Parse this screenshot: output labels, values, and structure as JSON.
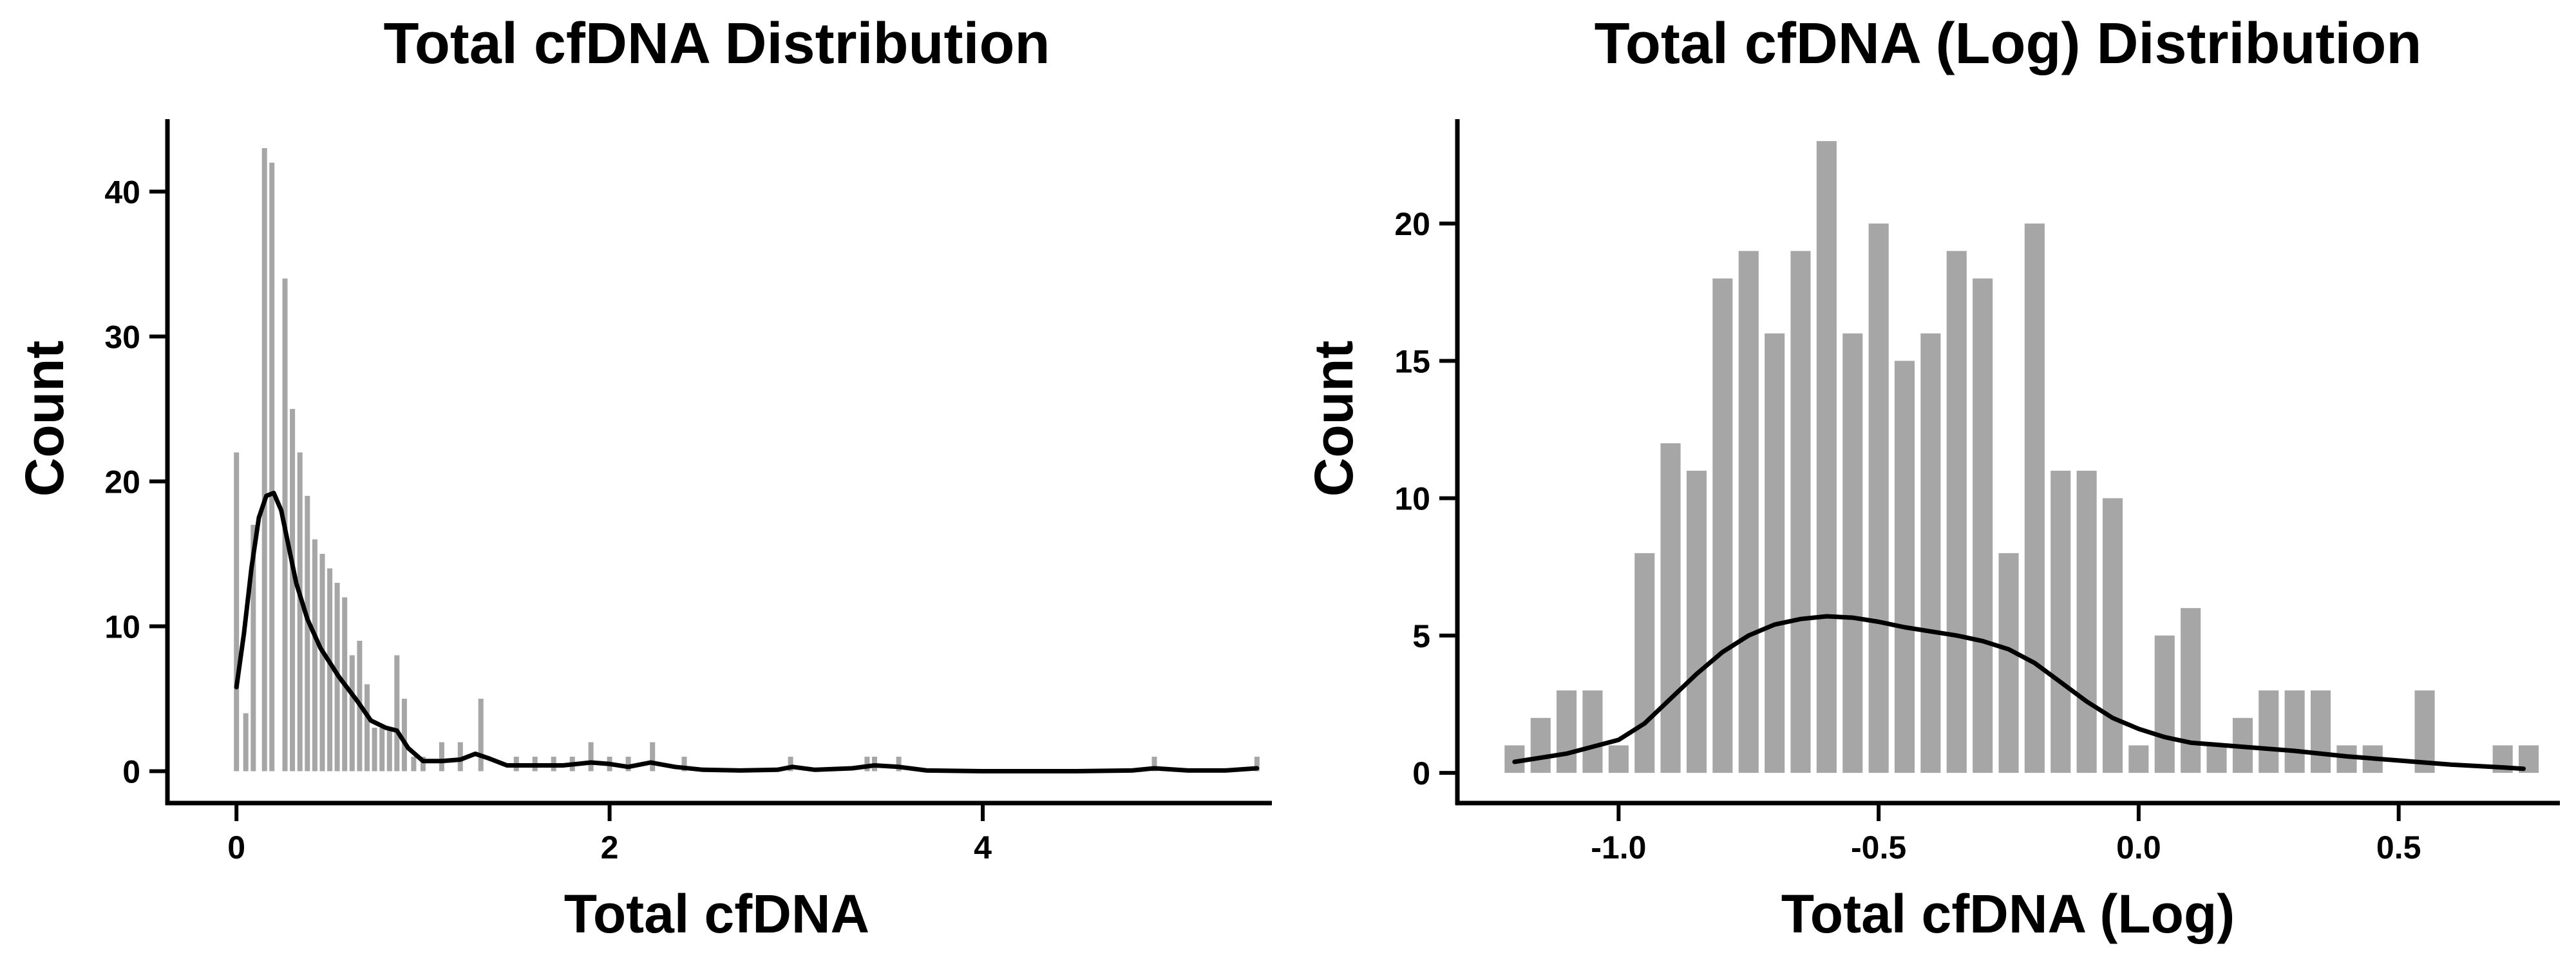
{
  "chart_data": [
    {
      "type": "bar",
      "title": "Total cfDNA Distribution",
      "xlabel": "Total cfDNA",
      "ylabel": "Count",
      "xlim": [
        -0.37,
        5.55
      ],
      "ylim": [
        -2.2,
        45
      ],
      "xticks": [
        "0",
        "2",
        "4"
      ],
      "yticks": [
        "0",
        "10",
        "20",
        "30",
        "40"
      ],
      "grid": false,
      "bin_width": 0.0275,
      "series": [
        {
          "kind": "histogram",
          "bins": [
            {
              "x": 0.0,
              "count": 22
            },
            {
              "x": 0.05,
              "count": 4
            },
            {
              "x": 0.09,
              "count": 17
            },
            {
              "x": 0.15,
              "count": 43
            },
            {
              "x": 0.19,
              "count": 42
            },
            {
              "x": 0.26,
              "count": 34
            },
            {
              "x": 0.3,
              "count": 25
            },
            {
              "x": 0.34,
              "count": 22
            },
            {
              "x": 0.38,
              "count": 19
            },
            {
              "x": 0.42,
              "count": 16
            },
            {
              "x": 0.46,
              "count": 15
            },
            {
              "x": 0.5,
              "count": 14
            },
            {
              "x": 0.54,
              "count": 13
            },
            {
              "x": 0.58,
              "count": 12
            },
            {
              "x": 0.62,
              "count": 8
            },
            {
              "x": 0.66,
              "count": 9
            },
            {
              "x": 0.7,
              "count": 6
            },
            {
              "x": 0.74,
              "count": 3
            },
            {
              "x": 0.78,
              "count": 3
            },
            {
              "x": 0.82,
              "count": 3
            },
            {
              "x": 0.86,
              "count": 8
            },
            {
              "x": 0.9,
              "count": 5
            },
            {
              "x": 0.95,
              "count": 1
            },
            {
              "x": 1.0,
              "count": 1
            },
            {
              "x": 1.1,
              "count": 2
            },
            {
              "x": 1.2,
              "count": 2
            },
            {
              "x": 1.31,
              "count": 5
            },
            {
              "x": 1.5,
              "count": 1
            },
            {
              "x": 1.6,
              "count": 1
            },
            {
              "x": 1.7,
              "count": 1
            },
            {
              "x": 1.8,
              "count": 1
            },
            {
              "x": 1.9,
              "count": 2
            },
            {
              "x": 2.0,
              "count": 1
            },
            {
              "x": 2.1,
              "count": 1
            },
            {
              "x": 2.23,
              "count": 2
            },
            {
              "x": 2.4,
              "count": 1
            },
            {
              "x": 2.97,
              "count": 1
            },
            {
              "x": 3.38,
              "count": 1
            },
            {
              "x": 3.42,
              "count": 1
            },
            {
              "x": 3.55,
              "count": 1
            },
            {
              "x": 4.92,
              "count": 1
            },
            {
              "x": 5.47,
              "count": 1
            }
          ]
        },
        {
          "kind": "kde",
          "points": [
            [
              0.0,
              5.8
            ],
            [
              0.04,
              9.5
            ],
            [
              0.08,
              14.0
            ],
            [
              0.12,
              17.5
            ],
            [
              0.16,
              19.0
            ],
            [
              0.2,
              19.2
            ],
            [
              0.24,
              18.0
            ],
            [
              0.28,
              15.5
            ],
            [
              0.32,
              13.0
            ],
            [
              0.38,
              10.5
            ],
            [
              0.45,
              8.5
            ],
            [
              0.55,
              6.5
            ],
            [
              0.65,
              4.8
            ],
            [
              0.72,
              3.5
            ],
            [
              0.8,
              3.0
            ],
            [
              0.86,
              2.8
            ],
            [
              0.92,
              1.6
            ],
            [
              1.0,
              0.7
            ],
            [
              1.1,
              0.7
            ],
            [
              1.2,
              0.8
            ],
            [
              1.28,
              1.2
            ],
            [
              1.35,
              0.9
            ],
            [
              1.45,
              0.4
            ],
            [
              1.6,
              0.4
            ],
            [
              1.75,
              0.4
            ],
            [
              1.9,
              0.6
            ],
            [
              2.0,
              0.5
            ],
            [
              2.1,
              0.3
            ],
            [
              2.22,
              0.6
            ],
            [
              2.35,
              0.3
            ],
            [
              2.5,
              0.1
            ],
            [
              2.7,
              0.05
            ],
            [
              2.9,
              0.1
            ],
            [
              2.98,
              0.3
            ],
            [
              3.1,
              0.1
            ],
            [
              3.3,
              0.2
            ],
            [
              3.42,
              0.4
            ],
            [
              3.55,
              0.3
            ],
            [
              3.7,
              0.05
            ],
            [
              4.0,
              0.0
            ],
            [
              4.5,
              0.0
            ],
            [
              4.8,
              0.05
            ],
            [
              4.92,
              0.2
            ],
            [
              5.1,
              0.05
            ],
            [
              5.3,
              0.05
            ],
            [
              5.47,
              0.2
            ]
          ]
        }
      ]
    },
    {
      "type": "bar",
      "title": "Total cfDNA (Log) Distribution",
      "xlabel": "Total cfDNA (Log)",
      "ylabel": "Count",
      "xlim": [
        -1.31,
        0.81
      ],
      "ylim": [
        -1.1,
        23.8
      ],
      "xticks": [
        "-1.0",
        "-0.5",
        "0.0",
        "0.5"
      ],
      "yticks": [
        "0",
        "5",
        "10",
        "15",
        "20"
      ],
      "grid": false,
      "bin_width": 0.0385,
      "series": [
        {
          "kind": "histogram",
          "bins": [
            {
              "x": -1.2,
              "count": 1
            },
            {
              "x": -1.15,
              "count": 2
            },
            {
              "x": -1.1,
              "count": 3
            },
            {
              "x": -1.05,
              "count": 3
            },
            {
              "x": -1.0,
              "count": 1
            },
            {
              "x": -0.95,
              "count": 8
            },
            {
              "x": -0.9,
              "count": 12
            },
            {
              "x": -0.85,
              "count": 11
            },
            {
              "x": -0.8,
              "count": 18
            },
            {
              "x": -0.75,
              "count": 19
            },
            {
              "x": -0.7,
              "count": 16
            },
            {
              "x": -0.65,
              "count": 19
            },
            {
              "x": -0.6,
              "count": 23
            },
            {
              "x": -0.55,
              "count": 16
            },
            {
              "x": -0.5,
              "count": 20
            },
            {
              "x": -0.45,
              "count": 15
            },
            {
              "x": -0.4,
              "count": 16
            },
            {
              "x": -0.35,
              "count": 19
            },
            {
              "x": -0.3,
              "count": 18
            },
            {
              "x": -0.25,
              "count": 8
            },
            {
              "x": -0.2,
              "count": 20
            },
            {
              "x": -0.15,
              "count": 11
            },
            {
              "x": -0.1,
              "count": 11
            },
            {
              "x": -0.05,
              "count": 10
            },
            {
              "x": 0.0,
              "count": 1
            },
            {
              "x": 0.05,
              "count": 5
            },
            {
              "x": 0.1,
              "count": 6
            },
            {
              "x": 0.15,
              "count": 1
            },
            {
              "x": 0.2,
              "count": 2
            },
            {
              "x": 0.25,
              "count": 3
            },
            {
              "x": 0.3,
              "count": 3
            },
            {
              "x": 0.35,
              "count": 3
            },
            {
              "x": 0.4,
              "count": 1
            },
            {
              "x": 0.45,
              "count": 1
            },
            {
              "x": 0.55,
              "count": 3
            },
            {
              "x": 0.7,
              "count": 1
            },
            {
              "x": 0.75,
              "count": 1
            }
          ]
        },
        {
          "kind": "kde",
          "points": [
            [
              -1.2,
              0.4
            ],
            [
              -1.1,
              0.7
            ],
            [
              -1.0,
              1.2
            ],
            [
              -0.95,
              1.8
            ],
            [
              -0.9,
              2.7
            ],
            [
              -0.85,
              3.6
            ],
            [
              -0.8,
              4.4
            ],
            [
              -0.75,
              5.0
            ],
            [
              -0.7,
              5.4
            ],
            [
              -0.65,
              5.6
            ],
            [
              -0.6,
              5.7
            ],
            [
              -0.55,
              5.65
            ],
            [
              -0.5,
              5.5
            ],
            [
              -0.45,
              5.3
            ],
            [
              -0.4,
              5.15
            ],
            [
              -0.35,
              5.0
            ],
            [
              -0.3,
              4.8
            ],
            [
              -0.25,
              4.5
            ],
            [
              -0.2,
              4.0
            ],
            [
              -0.15,
              3.3
            ],
            [
              -0.1,
              2.6
            ],
            [
              -0.05,
              2.0
            ],
            [
              0.0,
              1.6
            ],
            [
              0.05,
              1.3
            ],
            [
              0.1,
              1.1
            ],
            [
              0.2,
              0.95
            ],
            [
              0.3,
              0.8
            ],
            [
              0.4,
              0.6
            ],
            [
              0.5,
              0.45
            ],
            [
              0.6,
              0.3
            ],
            [
              0.7,
              0.2
            ],
            [
              0.74,
              0.15
            ]
          ]
        }
      ]
    }
  ],
  "colors": {
    "bar_fill": "#a6a6a6",
    "kde_line": "#000000",
    "axis": "#000000",
    "background": "#ffffff"
  }
}
